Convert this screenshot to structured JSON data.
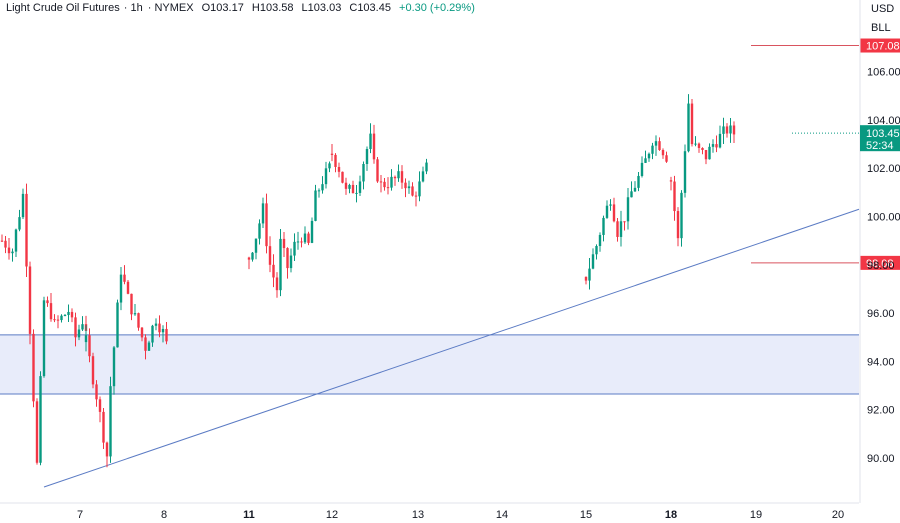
{
  "header": {
    "title": "Light Crude Oil Futures",
    "interval": "1h",
    "exchange": "NYMEX",
    "open": "O103.17",
    "high": "H103.58",
    "low": "L103.03",
    "close": "C103.45",
    "change": "+0.30 (+0.29%)"
  },
  "axis": {
    "currency": "USD",
    "unit": "BLL"
  },
  "colors": {
    "up": "#089981",
    "down": "#f23645",
    "trendline": "#5b7bc4",
    "zone_fill": "#e8ecfa",
    "price_label_bg": "#089981",
    "level_line": "#d9545f"
  },
  "chart_data": {
    "type": "candlestick",
    "title": "Light Crude Oil Futures",
    "interval": "1h",
    "y_ticks": [
      "106.00",
      "104.00",
      "102.00",
      "100.00",
      "98.00",
      "96.00",
      "94.00",
      "92.00",
      "90.00"
    ],
    "ylim": [
      88.5,
      108.2
    ],
    "x_ticks": [
      "7",
      "8",
      "11",
      "12",
      "13",
      "14",
      "15",
      "18",
      "19",
      "20"
    ],
    "x_tick_bold": [
      "11",
      "18"
    ],
    "current_price": {
      "label": "103.45",
      "countdown": "52:34",
      "value": 103.45
    },
    "levels": [
      {
        "label": "107.08",
        "value": 107.08
      },
      {
        "label": "98.08",
        "value": 98.08
      }
    ],
    "zone": {
      "top": 95.1,
      "bottom": 92.65
    },
    "trendline": {
      "from": {
        "x": 0.5,
        "y": 88.8
      },
      "to": {
        "x": 9.7,
        "y": 100.3
      }
    },
    "grid": false,
    "series": [
      {
        "day": 0.0,
        "waypoints": [
          [
            0,
            99.0
          ],
          [
            3,
            98.6
          ],
          [
            6,
            100.9
          ],
          [
            7,
            98.2
          ],
          [
            10,
            89.7
          ],
          [
            12,
            96.5
          ],
          [
            14,
            96.0
          ],
          [
            15,
            95.5
          ],
          [
            17,
            95.8
          ],
          [
            19,
            96.1
          ],
          [
            21,
            95.0
          ],
          [
            23,
            95.7
          ],
          [
            24,
            95.4
          ]
        ]
      },
      {
        "day": 1.0,
        "waypoints": [
          [
            0,
            94.8
          ],
          [
            3,
            92.6
          ],
          [
            6,
            90.1
          ],
          [
            7,
            93.0
          ],
          [
            9,
            96.2
          ],
          [
            10,
            97.8
          ],
          [
            12,
            96.6
          ],
          [
            14,
            95.8
          ],
          [
            17,
            94.6
          ],
          [
            20,
            95.8
          ],
          [
            22,
            95.2
          ],
          [
            23,
            94.7
          ]
        ]
      },
      {
        "day": 2.0,
        "waypoints": [
          [
            0,
            98.3
          ],
          [
            2,
            99.2
          ],
          [
            4,
            100.3
          ],
          [
            5,
            99.0
          ],
          [
            6,
            98.0
          ],
          [
            8,
            97.0
          ],
          [
            9,
            98.9
          ],
          [
            11,
            97.9
          ],
          [
            13,
            98.8
          ],
          [
            15,
            99.2
          ],
          [
            17,
            98.8
          ],
          [
            19,
            100.8
          ],
          [
            21,
            101.5
          ],
          [
            23,
            102.0
          ]
        ]
      },
      {
        "day": 3.0,
        "waypoints": [
          [
            0,
            102.6
          ],
          [
            2,
            102.0
          ],
          [
            4,
            101.0
          ],
          [
            7,
            101.2
          ],
          [
            10,
            102.8
          ],
          [
            11,
            103.2
          ],
          [
            12,
            102.1
          ],
          [
            14,
            101.3
          ],
          [
            16,
            101.4
          ],
          [
            19,
            101.6
          ],
          [
            21,
            101.4
          ],
          [
            23,
            100.8
          ],
          [
            25,
            101.3
          ],
          [
            27,
            102.0
          ]
        ]
      },
      {
        "day": 4.0,
        "waypoints": [
          [
            0,
            97.5
          ],
          [
            3,
            98.8
          ],
          [
            5,
            99.9
          ],
          [
            7,
            100.8
          ],
          [
            9,
            99.4
          ],
          [
            11,
            100.0
          ],
          [
            13,
            101.0
          ],
          [
            15,
            101.6
          ],
          [
            17,
            102.3
          ],
          [
            19,
            103.2
          ],
          [
            21,
            103.0
          ],
          [
            23,
            102.5
          ]
        ]
      },
      {
        "day": 5.0,
        "waypoints": [
          [
            0,
            101.5
          ],
          [
            2,
            99.0
          ],
          [
            3,
            101.0
          ],
          [
            5,
            104.7
          ],
          [
            6,
            103.0
          ],
          [
            8,
            102.7
          ],
          [
            10,
            102.5
          ],
          [
            12,
            103.0
          ],
          [
            14,
            103.3
          ],
          [
            16,
            103.6
          ],
          [
            18,
            103.45
          ]
        ]
      }
    ]
  }
}
